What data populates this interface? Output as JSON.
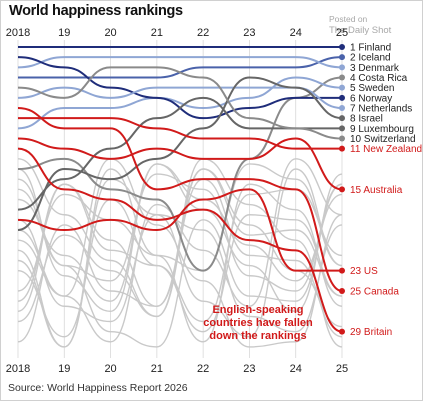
{
  "title": "World happiness rankings",
  "watermark": {
    "line1": "Posted on",
    "line2": "The Daily Shot"
  },
  "source": "Source: World Happiness Report 2026",
  "chart_data": {
    "type": "line",
    "subtype": "bump",
    "x": [
      "2018",
      "19",
      "20",
      "21",
      "22",
      "23",
      "24",
      "25"
    ],
    "y_axis": {
      "meaning": "rank",
      "direction": "rank 1 at top",
      "range": [
        1,
        31
      ]
    },
    "grid": "vertical gridlines at each year",
    "tick_labels_top": true,
    "tick_labels_bottom": true,
    "colors": {
      "navy": "#1f2d7a",
      "blue": "#4a62aa",
      "light_blue": "#8fa6d4",
      "dark_gray": "#666666",
      "mid_gray": "#8a8a8a",
      "light_gray": "#c9c9c9",
      "red": "#d11a1a"
    },
    "series": [
      {
        "label": "1 Finland",
        "color": "navy",
        "values": [
          1,
          1,
          1,
          1,
          1,
          1,
          1,
          1
        ]
      },
      {
        "label": "2 Iceland",
        "color": "blue",
        "values": [
          4,
          4,
          4,
          4,
          3,
          3,
          3,
          2
        ]
      },
      {
        "label": "3 Denmark",
        "color": "light_blue",
        "values": [
          3,
          2,
          2,
          2,
          2,
          2,
          2,
          3
        ]
      },
      {
        "label": "4 Costa Rica",
        "color": "mid_gray",
        "values": [
          13,
          12,
          15,
          16,
          23,
          12,
          6,
          4
        ]
      },
      {
        "label": "5 Sweden",
        "color": "light_blue",
        "values": [
          9,
          7,
          7,
          6,
          7,
          6,
          4,
          5
        ]
      },
      {
        "label": "6 Norway",
        "color": "navy",
        "values": [
          2,
          3,
          5,
          6,
          8,
          7,
          6,
          6
        ]
      },
      {
        "label": "7 Netherlands",
        "color": "light_blue",
        "values": [
          6,
          5,
          6,
          5,
          5,
          5,
          5,
          7
        ]
      },
      {
        "label": "8 Israel",
        "color": "dark_gray",
        "values": [
          19,
          13,
          14,
          12,
          9,
          4,
          5,
          8
        ]
      },
      {
        "label": "9 Luxembourg",
        "color": "dark_gray",
        "values": [
          17,
          14,
          11,
          8,
          6,
          9,
          9,
          9
        ]
      },
      {
        "label": "10 Switzerland",
        "color": "mid_gray",
        "values": [
          5,
          6,
          3,
          3,
          4,
          8,
          9,
          10
        ]
      },
      {
        "label": "11 New Zealand",
        "color": "red",
        "values": [
          8,
          8,
          8,
          9,
          10,
          10,
          11,
          11
        ]
      },
      {
        "label": "15 Australia",
        "color": "red",
        "values": [
          10,
          11,
          12,
          11,
          12,
          12,
          10,
          15
        ]
      },
      {
        "label": "23 US",
        "color": "red",
        "values": [
          18,
          19,
          18,
          19,
          16,
          15,
          23,
          23
        ]
      },
      {
        "label": "25 Canada",
        "color": "red",
        "values": [
          7,
          9,
          9,
          15,
          14,
          14,
          15,
          25
        ]
      },
      {
        "label": "29 Britain",
        "color": "red",
        "values": [
          11,
          15,
          16,
          18,
          17,
          20,
          21,
          29
        ]
      }
    ],
    "background_lines_color": "light_gray",
    "annotation": {
      "lines": [
        "English-speaking",
        "countries have fallen",
        "down the rankings"
      ],
      "color": "red"
    }
  }
}
